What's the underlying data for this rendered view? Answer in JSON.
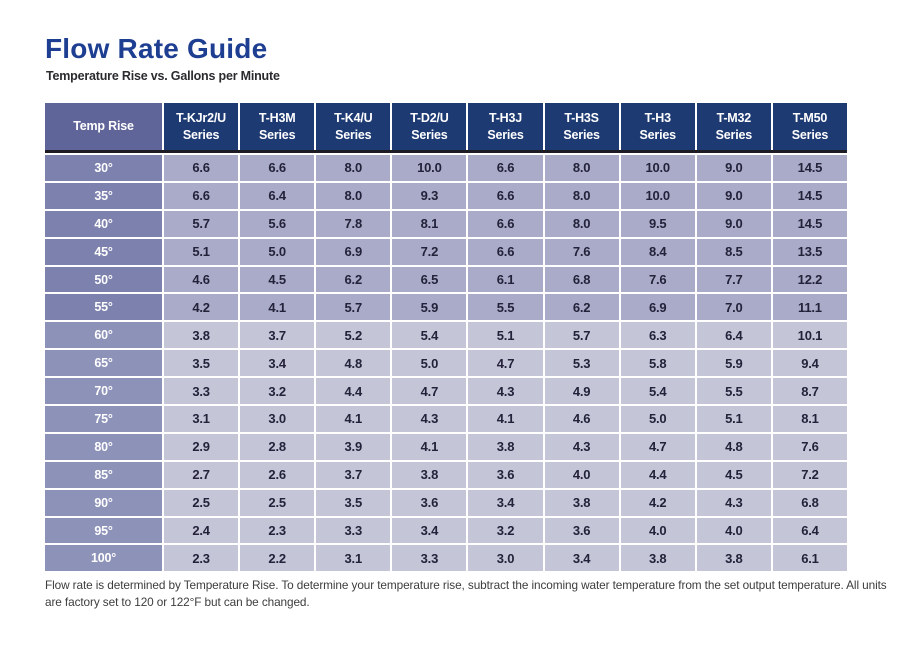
{
  "header": {
    "title": "Flow Rate Guide",
    "subtitle": "Temperature Rise vs. Gallons per Minute"
  },
  "table": {
    "temp_header": "Temp Rise",
    "series_label": "Series",
    "columns": [
      "T-KJr2/U",
      "T-H3M",
      "T-K4/U",
      "T-D2/U",
      "T-H3J",
      "T-H3S",
      "T-H3",
      "T-M32",
      "T-M50"
    ],
    "rows": [
      {
        "temp": "30°",
        "values": [
          "6.6",
          "6.6",
          "8.0",
          "10.0",
          "6.6",
          "8.0",
          "10.0",
          "9.0",
          "14.5"
        ]
      },
      {
        "temp": "35°",
        "values": [
          "6.6",
          "6.4",
          "8.0",
          "9.3",
          "6.6",
          "8.0",
          "10.0",
          "9.0",
          "14.5"
        ]
      },
      {
        "temp": "40°",
        "values": [
          "5.7",
          "5.6",
          "7.8",
          "8.1",
          "6.6",
          "8.0",
          "9.5",
          "9.0",
          "14.5"
        ]
      },
      {
        "temp": "45°",
        "values": [
          "5.1",
          "5.0",
          "6.9",
          "7.2",
          "6.6",
          "7.6",
          "8.4",
          "8.5",
          "13.5"
        ]
      },
      {
        "temp": "50°",
        "values": [
          "4.6",
          "4.5",
          "6.2",
          "6.5",
          "6.1",
          "6.8",
          "7.6",
          "7.7",
          "12.2"
        ]
      },
      {
        "temp": "55°",
        "values": [
          "4.2",
          "4.1",
          "5.7",
          "5.9",
          "5.5",
          "6.2",
          "6.9",
          "7.0",
          "11.1"
        ]
      },
      {
        "temp": "60°",
        "values": [
          "3.8",
          "3.7",
          "5.2",
          "5.4",
          "5.1",
          "5.7",
          "6.3",
          "6.4",
          "10.1"
        ]
      },
      {
        "temp": "65°",
        "values": [
          "3.5",
          "3.4",
          "4.8",
          "5.0",
          "4.7",
          "5.3",
          "5.8",
          "5.9",
          "9.4"
        ]
      },
      {
        "temp": "70°",
        "values": [
          "3.3",
          "3.2",
          "4.4",
          "4.7",
          "4.3",
          "4.9",
          "5.4",
          "5.5",
          "8.7"
        ]
      },
      {
        "temp": "75°",
        "values": [
          "3.1",
          "3.0",
          "4.1",
          "4.3",
          "4.1",
          "4.6",
          "5.0",
          "5.1",
          "8.1"
        ]
      },
      {
        "temp": "80°",
        "values": [
          "2.9",
          "2.8",
          "3.9",
          "4.1",
          "3.8",
          "4.3",
          "4.7",
          "4.8",
          "7.6"
        ]
      },
      {
        "temp": "85°",
        "values": [
          "2.7",
          "2.6",
          "3.7",
          "3.8",
          "3.6",
          "4.0",
          "4.4",
          "4.5",
          "7.2"
        ]
      },
      {
        "temp": "90°",
        "values": [
          "2.5",
          "2.5",
          "3.5",
          "3.6",
          "3.4",
          "3.8",
          "4.2",
          "4.3",
          "6.8"
        ]
      },
      {
        "temp": "95°",
        "values": [
          "2.4",
          "2.3",
          "3.3",
          "3.4",
          "3.2",
          "3.6",
          "4.0",
          "4.0",
          "6.4"
        ]
      },
      {
        "temp": "100°",
        "values": [
          "2.3",
          "2.2",
          "3.1",
          "3.3",
          "3.0",
          "3.4",
          "3.8",
          "3.8",
          "6.1"
        ]
      }
    ]
  },
  "footnote": {
    "line1": "Flow rate is determined by Temperature Rise.  To determine your temperature rise, subtract the incoming water temperature from the set output temperature.  All units",
    "line2": "are factory set to 120 or 122°F but can be changed."
  },
  "colors": {
    "title_blue": "#1e3e92",
    "header_navy": "#1e3a73",
    "temp_header_slate": "#5f6598",
    "temp_cell_upper": "#7d81ae",
    "temp_cell_lower": "#8d92b8",
    "data_cell_upper": "#a9abc8",
    "data_cell_lower": "#c4c6d8",
    "header_divider_black": "#1d1c24"
  }
}
